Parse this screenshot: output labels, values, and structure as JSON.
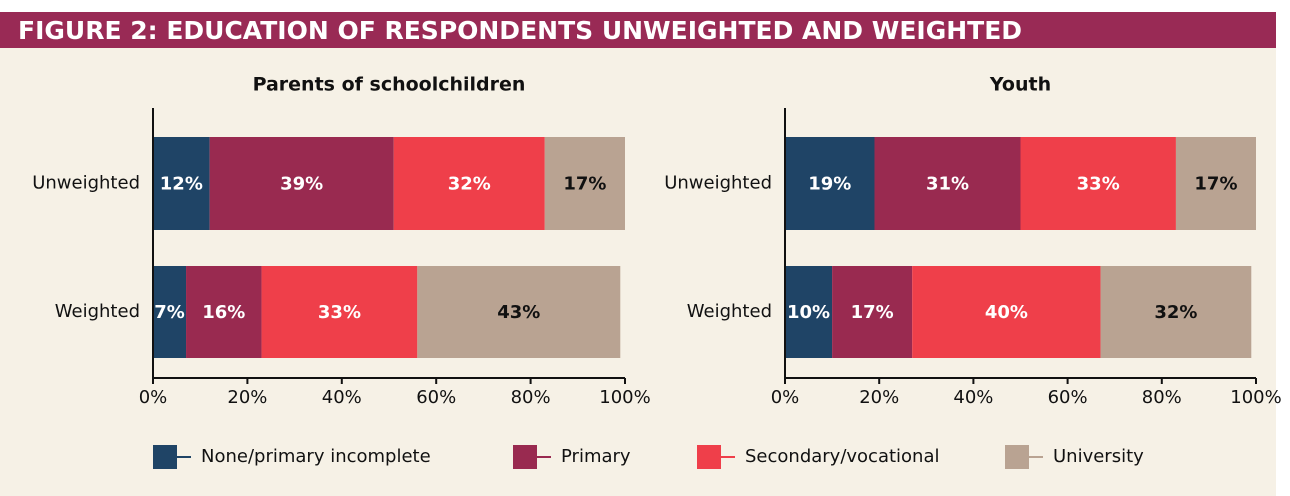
{
  "title": "FIGURE 2: EDUCATION OF RESPONDENTS UNWEIGHTED AND WEIGHTED",
  "chart_data": [
    {
      "type": "stacked-bar",
      "orientation": "horizontal",
      "title": "Parents of schoolchildren",
      "categories": [
        "Unweighted",
        "Weighted"
      ],
      "series": [
        {
          "name": "None/primary incomplete",
          "color": "#1f4466",
          "values": [
            12,
            7
          ],
          "value_labels": [
            "12%",
            "7%"
          ]
        },
        {
          "name": "Primary",
          "color": "#992a50",
          "values": [
            39,
            16
          ],
          "value_labels": [
            "39%",
            "16%"
          ]
        },
        {
          "name": "Secondary/vocational",
          "color": "#ef3f4a",
          "values": [
            32,
            33
          ],
          "value_labels": [
            "32%",
            "33%"
          ]
        },
        {
          "name": "University",
          "color": "#b9a392",
          "values": [
            17,
            43
          ],
          "value_labels": [
            "17%",
            "43%"
          ]
        }
      ],
      "xlim": [
        0,
        100
      ],
      "xticks": [
        {
          "value": 0,
          "label": "0%"
        },
        {
          "value": 20,
          "label": "20%"
        },
        {
          "value": 40,
          "label": "40%"
        },
        {
          "value": 60,
          "label": "60%"
        },
        {
          "value": 80,
          "label": "80%"
        },
        {
          "value": 100,
          "label": "100%"
        }
      ],
      "legend": "bottom"
    },
    {
      "type": "stacked-bar",
      "orientation": "horizontal",
      "title": "Youth",
      "categories": [
        "Unweighted",
        "Weighted"
      ],
      "series": [
        {
          "name": "None/primary incomplete",
          "color": "#1f4466",
          "values": [
            19,
            10
          ],
          "value_labels": [
            "19%",
            "10%"
          ]
        },
        {
          "name": "Primary",
          "color": "#992a50",
          "values": [
            31,
            17
          ],
          "value_labels": [
            "31%",
            "17%"
          ]
        },
        {
          "name": "Secondary/vocational",
          "color": "#ef3f4a",
          "values": [
            33,
            40
          ],
          "value_labels": [
            "33%",
            "40%"
          ]
        },
        {
          "name": "University",
          "color": "#b9a392",
          "values": [
            17,
            32
          ],
          "value_labels": [
            "17%",
            "32%"
          ]
        }
      ],
      "xlim": [
        0,
        100
      ],
      "xticks": [
        {
          "value": 0,
          "label": "0%"
        },
        {
          "value": 20,
          "label": "20%"
        },
        {
          "value": 40,
          "label": "40%"
        },
        {
          "value": 60,
          "label": "60%"
        },
        {
          "value": 80,
          "label": "80%"
        },
        {
          "value": 100,
          "label": "100%"
        }
      ],
      "legend": "bottom"
    }
  ]
}
